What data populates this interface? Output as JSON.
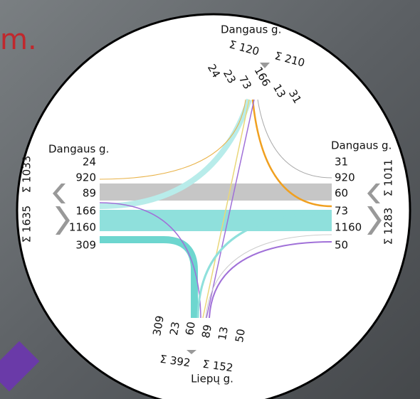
{
  "background_text": "m.",
  "north": {
    "name": "Dangaus g.",
    "sums": [
      "Σ 120",
      "Σ 210"
    ],
    "flows": [
      24,
      23,
      73,
      166,
      13,
      31
    ]
  },
  "west": {
    "name": "Dangaus g.",
    "flows": [
      24,
      920,
      89,
      166,
      1160,
      309
    ],
    "sums": [
      "Σ 1033",
      "Σ 1635"
    ]
  },
  "east": {
    "name": "Dangaus g.",
    "flows": [
      31,
      920,
      60,
      73,
      1160,
      50
    ],
    "sums": [
      "Σ 1011",
      "Σ 1283"
    ]
  },
  "south": {
    "flows": [
      309,
      23,
      60,
      89,
      13,
      50
    ],
    "sums": [
      "Σ 392",
      "Σ 152"
    ],
    "name": "Liepų g."
  }
}
